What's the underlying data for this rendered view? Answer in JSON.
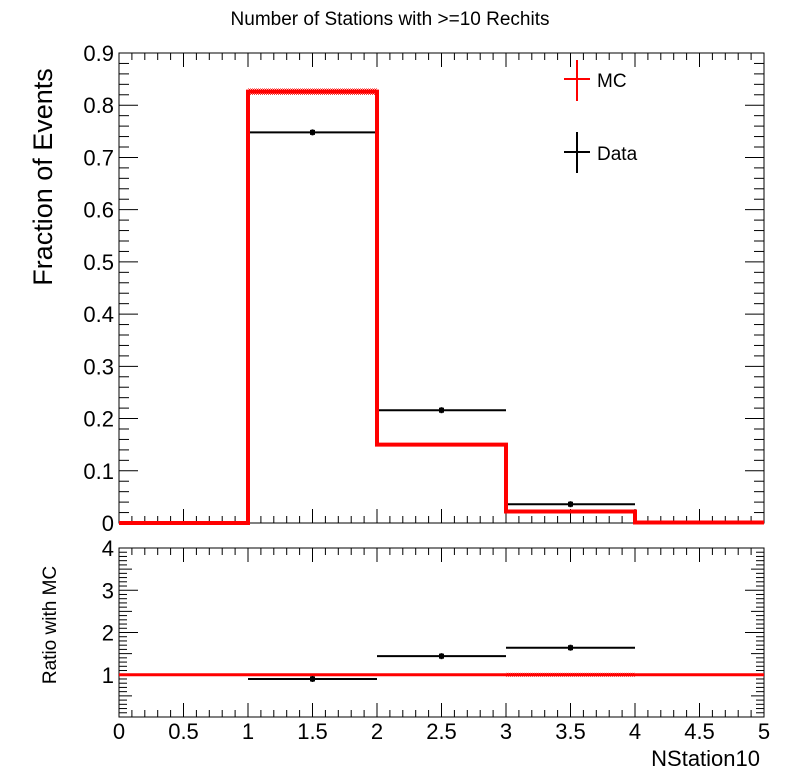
{
  "chart_data": [
    {
      "type": "bar",
      "title": "Number of Stations with >=10 Rechits",
      "ylabel": "Fraction of Events",
      "xlim": [
        0,
        5
      ],
      "ylim": [
        0,
        0.9
      ],
      "y_ticks": [
        "0",
        "0.1",
        "0.2",
        "0.3",
        "0.4",
        "0.5",
        "0.6",
        "0.7",
        "0.8",
        "0.9"
      ],
      "legend": {
        "placement": "top-right",
        "entries": [
          "MC",
          "Data"
        ]
      },
      "series": [
        {
          "name": "MC",
          "color": "#ff0000",
          "bins": [
            [
              0,
              1
            ],
            [
              1,
              2
            ],
            [
              2,
              3
            ],
            [
              3,
              4
            ],
            [
              4,
              5
            ]
          ],
          "values": [
            0.0,
            0.826,
            0.15,
            0.022,
            0.001
          ],
          "errors": [
            0.0,
            0.006,
            0.002,
            0.001,
            0.0
          ]
        },
        {
          "name": "Data",
          "color": "#000000",
          "x": [
            1.5,
            2.5,
            3.5
          ],
          "x_err": [
            0.5,
            0.5,
            0.5
          ],
          "values": [
            0.748,
            0.216,
            0.036
          ],
          "errors": [
            0.004,
            0.002,
            0.001
          ]
        }
      ]
    },
    {
      "type": "scatter",
      "ylabel": "Ratio with MC",
      "xlabel": "NStation10",
      "xlim": [
        0,
        5
      ],
      "ylim": [
        0,
        4
      ],
      "x_ticks": [
        "0",
        "0.5",
        "1",
        "1.5",
        "2",
        "2.5",
        "3",
        "3.5",
        "4",
        "4.5",
        "5"
      ],
      "y_ticks": [
        "1",
        "2",
        "3",
        "4"
      ],
      "reference": {
        "value": 1,
        "color": "#ff0000"
      },
      "series": [
        {
          "name": "Ratio",
          "color": "#000000",
          "x": [
            1.5,
            2.5,
            3.5
          ],
          "x_err": [
            0.5,
            0.5,
            0.5
          ],
          "values": [
            0.9,
            1.44,
            1.64
          ],
          "errors": [
            0.01,
            0.02,
            0.04
          ]
        }
      ]
    }
  ]
}
